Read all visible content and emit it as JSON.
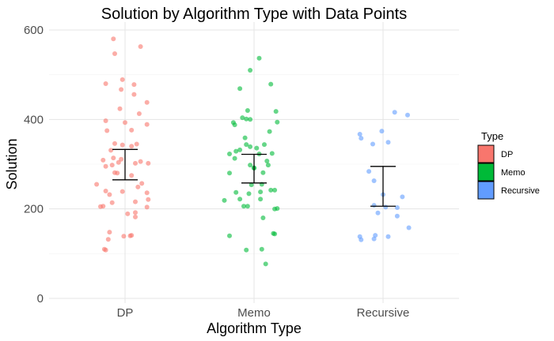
{
  "chart_data": {
    "type": "scatter",
    "title": "Solution by Algorithm Type with Data Points",
    "xlabel": "Algorithm Type",
    "ylabel": "Solution",
    "categories": [
      "DP",
      "Memo",
      "Recursive"
    ],
    "ylim": [
      0,
      600
    ],
    "yticks": [
      0,
      200,
      400,
      600
    ],
    "grid": true,
    "legend": {
      "title": "Type",
      "position": "right"
    },
    "series": [
      {
        "name": "DP",
        "color": "#F8766D",
        "mean_ci": [
          265,
          333
        ],
        "points": [
          [
            -0.09,
            580
          ],
          [
            0.12,
            563
          ],
          [
            -0.08,
            547
          ],
          [
            -0.15,
            480
          ],
          [
            -0.02,
            489
          ],
          [
            0.07,
            478
          ],
          [
            -0.03,
            467
          ],
          [
            0.07,
            456
          ],
          [
            0.17,
            438
          ],
          [
            -0.04,
            424
          ],
          [
            0.11,
            413
          ],
          [
            -0.15,
            397
          ],
          [
            0.0,
            393
          ],
          [
            0.17,
            389
          ],
          [
            -0.14,
            375
          ],
          [
            0.05,
            376
          ],
          [
            -0.08,
            346
          ],
          [
            -0.02,
            343
          ],
          [
            0.09,
            345
          ],
          [
            0.05,
            340
          ],
          [
            -0.11,
            331
          ],
          [
            -0.17,
            309
          ],
          [
            -0.09,
            314
          ],
          [
            -0.05,
            304
          ],
          [
            -0.03,
            311
          ],
          [
            -0.1,
            298
          ],
          [
            -0.15,
            295
          ],
          [
            0.12,
            306
          ],
          [
            0.08,
            302
          ],
          [
            0.18,
            302
          ],
          [
            -0.06,
            280
          ],
          [
            -0.08,
            281
          ],
          [
            0.05,
            275
          ],
          [
            0.13,
            257
          ],
          [
            0.1,
            249
          ],
          [
            -0.22,
            255
          ],
          [
            -0.15,
            240
          ],
          [
            -0.12,
            232
          ],
          [
            -0.02,
            239
          ],
          [
            0.17,
            236
          ],
          [
            0.18,
            221
          ],
          [
            -0.1,
            214
          ],
          [
            0.08,
            216
          ],
          [
            -0.19,
            205
          ],
          [
            -0.17,
            206
          ],
          [
            0.17,
            204
          ],
          [
            0.02,
            189
          ],
          [
            0.08,
            192
          ],
          [
            0.08,
            182
          ],
          [
            -0.12,
            148
          ],
          [
            -0.13,
            132
          ],
          [
            0.04,
            140
          ],
          [
            0.05,
            141
          ],
          [
            -0.01,
            139
          ],
          [
            -0.16,
            110
          ],
          [
            -0.15,
            108
          ]
        ]
      },
      {
        "name": "Memo",
        "color": "#00BA38",
        "mean_ci": [
          258,
          322
        ],
        "points": [
          [
            0.04,
            537
          ],
          [
            -0.03,
            510
          ],
          [
            -0.11,
            469
          ],
          [
            0.13,
            479
          ],
          [
            -0.05,
            420
          ],
          [
            0.17,
            418
          ],
          [
            -0.09,
            404
          ],
          [
            -0.06,
            401
          ],
          [
            -0.03,
            400
          ],
          [
            -0.16,
            393
          ],
          [
            -0.15,
            388
          ],
          [
            0.18,
            394
          ],
          [
            0.12,
            373
          ],
          [
            -0.07,
            359
          ],
          [
            0.08,
            344
          ],
          [
            -0.11,
            332
          ],
          [
            -0.06,
            344
          ],
          [
            -0.03,
            339
          ],
          [
            0.02,
            336
          ],
          [
            -0.19,
            323
          ],
          [
            -0.14,
            329
          ],
          [
            0.04,
            323
          ],
          [
            0.1,
            307
          ],
          [
            0.14,
            324
          ],
          [
            -0.15,
            313
          ],
          [
            -0.03,
            298
          ],
          [
            0.0,
            292
          ],
          [
            0.11,
            298
          ],
          [
            -0.19,
            280
          ],
          [
            0.07,
            281
          ],
          [
            -0.02,
            254
          ],
          [
            0.06,
            255
          ],
          [
            0.13,
            242
          ],
          [
            0.16,
            242
          ],
          [
            -0.14,
            237
          ],
          [
            -0.04,
            234
          ],
          [
            0.05,
            238
          ],
          [
            0.05,
            222
          ],
          [
            -0.11,
            222
          ],
          [
            -0.23,
            219
          ],
          [
            -0.08,
            206
          ],
          [
            -0.05,
            206
          ],
          [
            0.18,
            201
          ],
          [
            0.07,
            180
          ],
          [
            -0.19,
            140
          ],
          [
            0.16,
            144
          ],
          [
            0.15,
            145
          ],
          [
            0.06,
            110
          ],
          [
            -0.06,
            108
          ],
          [
            0.09,
            77
          ],
          [
            0.16,
            200
          ],
          [
            0.0,
            291
          ]
        ]
      },
      {
        "name": "Recursive",
        "color": "#619CFF",
        "mean_ci": [
          206,
          295
        ],
        "points": [
          [
            0.09,
            416
          ],
          [
            0.19,
            410
          ],
          [
            -0.01,
            374
          ],
          [
            -0.18,
            367
          ],
          [
            -0.17,
            358
          ],
          [
            -0.08,
            345
          ],
          [
            0.04,
            349
          ],
          [
            -0.11,
            284
          ],
          [
            -0.07,
            263
          ],
          [
            -0.0,
            232
          ],
          [
            0.15,
            227
          ],
          [
            -0.07,
            208
          ],
          [
            0.02,
            204
          ],
          [
            0.11,
            203
          ],
          [
            -0.04,
            191
          ],
          [
            0.11,
            184
          ],
          [
            0.2,
            158
          ],
          [
            -0.18,
            138
          ],
          [
            -0.06,
            141
          ],
          [
            -0.17,
            131
          ],
          [
            -0.07,
            133
          ],
          [
            0.04,
            138
          ]
        ]
      }
    ]
  }
}
